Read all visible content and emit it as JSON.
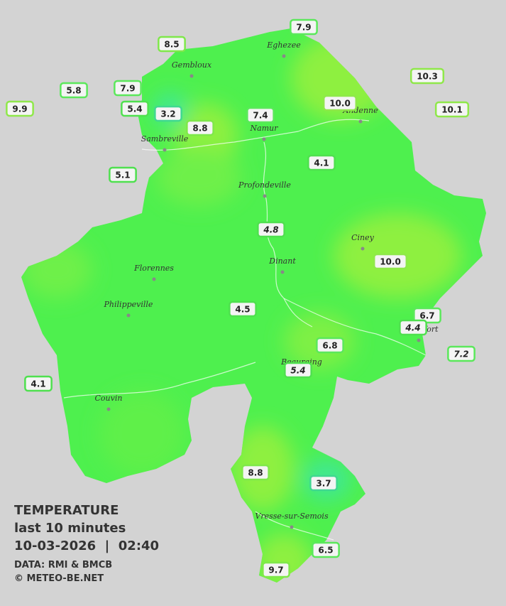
{
  "legend": {
    "lines": [
      "TEMPERATURE",
      "last 10 minutes",
      "10-03-2026  |  02:40",
      "DATA: RMI & BMCB",
      "© METEO-BE.NET"
    ]
  },
  "cities": [
    "Eghezee",
    "Gembloux",
    "Andenne",
    "Namur",
    "Sambreville",
    "Profondeville",
    "Ciney",
    "Dinant",
    "Florennes",
    "Philippeville",
    "Rochefort",
    "Beauraing",
    "Couvin",
    "Vresse-sur-Semois"
  ],
  "stations": [
    "7.9",
    "8.5",
    "5.8",
    "7.9",
    "9.9",
    "5.4",
    "3.2",
    "8.8",
    "7.4",
    "10.0",
    "10.3",
    "10.1",
    "5.1",
    "4.1",
    "4.8",
    "10.0",
    "4.5",
    "6.7",
    "4.4",
    "6.8",
    "7.2",
    "5.4",
    "4.1",
    "8.8",
    "3.7",
    "6.5",
    "9.7"
  ]
}
